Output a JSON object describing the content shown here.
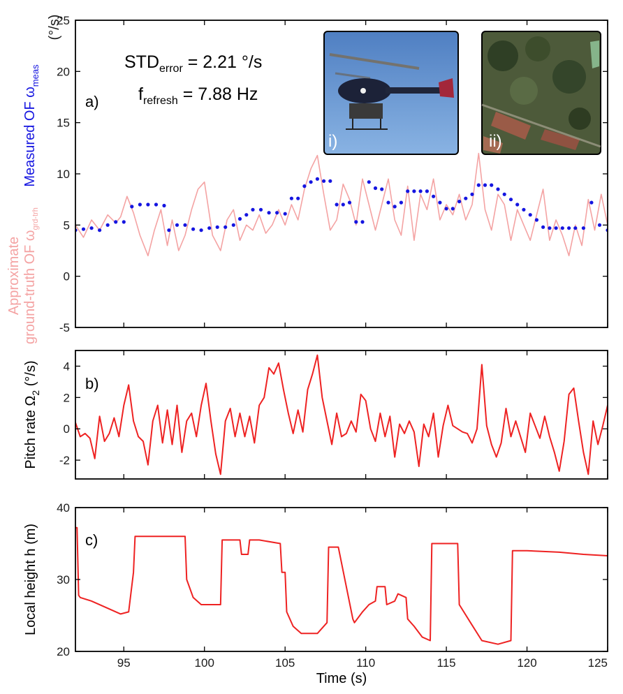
{
  "colors": {
    "ground_truth": "#f4a3a3",
    "measured": "#1515e0",
    "pitch": "#ee2222",
    "height": "#ee2222"
  },
  "xaxis": {
    "label": "Time (s)",
    "xlim": [
      92,
      125
    ],
    "ticks": [
      "95",
      "100",
      "105",
      "110",
      "115",
      "120",
      "125"
    ]
  },
  "panel_a": {
    "letter": "a)",
    "annotation_std": {
      "main": "STD",
      "sub": "error",
      "tail": " = 2.21 °/s"
    },
    "annotation_freq": {
      "main": "f",
      "sub": "refresh",
      "tail": " = 7.88 Hz"
    },
    "ylabel_measured": {
      "main": "Measured OF ω",
      "sub": "meas"
    },
    "ylabel_gt_line1": "Approximate",
    "ylabel_gt_line2": {
      "main": "ground-truth OF ω",
      "sub": "grd-trh"
    },
    "unit": "(°/s)",
    "ticks": [
      "-5",
      "0",
      "5",
      "10",
      "15",
      "20",
      "25"
    ],
    "inset_helicopter_label": "i)",
    "inset_aerial_label": "ii)"
  },
  "panel_b": {
    "letter": "b)",
    "ylabel": {
      "main": "Pitch rate Ω",
      "sub": "2",
      "tail": " (°/s)"
    },
    "ticks": [
      "-2",
      "0",
      "2",
      "4"
    ]
  },
  "panel_c": {
    "letter": "c)",
    "ylabel": "Local height h (m)",
    "ticks": [
      "20",
      "30",
      "40"
    ]
  },
  "chart_data": [
    {
      "type": "line",
      "panel": "a",
      "xlabel": "Time (s)",
      "ylabel": "Approximate ground-truth OF ω_grd-trh / Measured OF ω_meas (°/s)",
      "xlim": [
        92,
        125
      ],
      "ylim": [
        -5,
        25
      ],
      "series": [
        {
          "name": "Approximate ground-truth OF ω_grd-trh",
          "x": [
            92,
            92.5,
            93,
            93.5,
            94,
            94.5,
            94.8,
            95.2,
            95.6,
            96,
            96.5,
            96.9,
            97.3,
            97.7,
            98,
            98.4,
            98.8,
            99.2,
            99.6,
            100,
            100.5,
            101,
            101.4,
            101.8,
            102.2,
            102.6,
            103,
            103.4,
            103.8,
            104.2,
            104.6,
            105,
            105.4,
            105.8,
            106.2,
            106.6,
            107,
            107.4,
            107.8,
            108.2,
            108.6,
            109,
            109.4,
            109.8,
            110.2,
            110.6,
            111,
            111.4,
            111.8,
            112.2,
            112.6,
            113,
            113.4,
            113.8,
            114.2,
            114.6,
            115,
            115.4,
            115.8,
            116.2,
            116.6,
            117,
            117.4,
            117.8,
            118.2,
            118.6,
            119,
            119.4,
            119.8,
            120.2,
            120.6,
            121,
            121.4,
            121.8,
            122.2,
            122.6,
            123,
            123.4,
            123.8,
            124.2,
            124.6,
            125
          ],
          "y": [
            5.0,
            3.8,
            5.5,
            4.5,
            6.0,
            5.2,
            5.8,
            7.8,
            6.2,
            4.0,
            2.0,
            4.5,
            6.5,
            3.0,
            5.5,
            2.5,
            4.0,
            6.5,
            8.5,
            9.2,
            4.0,
            2.5,
            5.5,
            6.5,
            3.5,
            5.0,
            4.5,
            6.0,
            4.2,
            5.0,
            6.5,
            5.0,
            7.0,
            5.5,
            8.5,
            10.5,
            11.8,
            8.0,
            4.5,
            5.5,
            9.0,
            7.5,
            5.0,
            9.5,
            7.0,
            4.5,
            7.0,
            9.5,
            5.5,
            4.0,
            8.8,
            3.5,
            8.0,
            6.5,
            9.5,
            5.5,
            7.0,
            6.0,
            8.0,
            5.5,
            7.0,
            12.0,
            6.5,
            4.5,
            8.0,
            7.0,
            3.5,
            6.5,
            5.0,
            3.5,
            6.0,
            8.5,
            3.5,
            5.5,
            4.0,
            2.0,
            5.0,
            3.0,
            7.5,
            4.5,
            8.0,
            5.0
          ]
        },
        {
          "name": "Measured OF ω_meas",
          "x": [
            92,
            92.5,
            93,
            93.5,
            94,
            94.5,
            95,
            95.5,
            96,
            96.5,
            97,
            97.5,
            97.8,
            98.3,
            98.8,
            99.3,
            99.8,
            100.3,
            100.8,
            101.3,
            101.8,
            102.2,
            102.6,
            103,
            103.5,
            104,
            104.5,
            105,
            105.4,
            105.8,
            106.2,
            106.6,
            107,
            107.4,
            107.8,
            108.2,
            108.6,
            109,
            109.4,
            109.8,
            110.2,
            110.6,
            111,
            111.4,
            111.8,
            112.2,
            112.6,
            113,
            113.4,
            113.8,
            114.2,
            114.6,
            115,
            115.4,
            115.8,
            116.2,
            116.6,
            117,
            117.4,
            117.8,
            118.2,
            118.6,
            119,
            119.4,
            119.8,
            120.2,
            120.6,
            121,
            121.4,
            121.8,
            122.2,
            122.6,
            123,
            123.5,
            124,
            124.5,
            125
          ],
          "y": [
            4.5,
            4.6,
            4.7,
            4.5,
            5.0,
            5.3,
            5.3,
            6.8,
            7.0,
            7.0,
            7.0,
            6.9,
            4.5,
            5.0,
            5.0,
            4.6,
            4.5,
            4.7,
            4.8,
            4.8,
            5.0,
            5.6,
            6.0,
            6.5,
            6.5,
            6.2,
            6.2,
            6.1,
            7.6,
            7.6,
            8.8,
            9.2,
            9.5,
            9.3,
            9.3,
            7.0,
            7.0,
            7.2,
            5.3,
            5.3,
            9.2,
            8.6,
            8.5,
            7.2,
            6.8,
            7.2,
            8.3,
            8.3,
            8.3,
            8.3,
            7.8,
            7.2,
            6.6,
            6.6,
            7.3,
            7.6,
            8.0,
            8.9,
            8.9,
            8.9,
            8.5,
            8.0,
            7.5,
            7.0,
            6.5,
            6.0,
            5.5,
            4.8,
            4.7,
            4.7,
            4.7,
            4.7,
            4.7,
            4.7,
            7.2,
            5.0,
            4.5
          ]
        }
      ]
    },
    {
      "type": "line",
      "panel": "b",
      "xlabel": "Time (s)",
      "ylabel": "Pitch rate Ω2 (°/s)",
      "xlim": [
        92,
        125
      ],
      "ylim": [
        -3.2,
        5
      ],
      "series": [
        {
          "name": "Pitch rate Ω2",
          "x": [
            92,
            92.3,
            92.6,
            92.9,
            93.2,
            93.5,
            93.8,
            94.1,
            94.4,
            94.7,
            95,
            95.3,
            95.6,
            95.9,
            96.2,
            96.5,
            96.8,
            97.1,
            97.4,
            97.7,
            98,
            98.3,
            98.6,
            98.9,
            99.2,
            99.5,
            99.8,
            100.1,
            100.4,
            100.7,
            101,
            101.3,
            101.6,
            101.9,
            102.2,
            102.5,
            102.8,
            103.1,
            103.4,
            103.7,
            104,
            104.3,
            104.6,
            104.9,
            105.2,
            105.5,
            105.8,
            106.1,
            106.4,
            106.7,
            107,
            107.3,
            107.6,
            107.9,
            108.2,
            108.5,
            108.8,
            109.1,
            109.4,
            109.7,
            110,
            110.3,
            110.6,
            110.9,
            111.2,
            111.5,
            111.8,
            112.1,
            112.4,
            112.7,
            113,
            113.3,
            113.6,
            113.9,
            114.2,
            114.5,
            114.8,
            115.1,
            115.4,
            115.7,
            116,
            116.3,
            116.6,
            116.9,
            117.2,
            117.5,
            117.8,
            118.1,
            118.4,
            118.7,
            119,
            119.3,
            119.6,
            119.9,
            120.2,
            120.5,
            120.8,
            121.1,
            121.4,
            121.7,
            122,
            122.3,
            122.6,
            122.9,
            123.2,
            123.5,
            123.8,
            124.1,
            124.4,
            124.7,
            125
          ],
          "y": [
            0.4,
            -0.5,
            -0.3,
            -0.6,
            -1.9,
            0.8,
            -0.8,
            -0.3,
            0.7,
            -0.5,
            1.5,
            2.8,
            0.5,
            -0.5,
            -0.8,
            -2.3,
            0.5,
            1.5,
            -0.9,
            1.2,
            -1.0,
            1.5,
            -1.5,
            0.5,
            1.0,
            -0.5,
            1.5,
            2.9,
            0.5,
            -1.6,
            -2.9,
            0.5,
            1.3,
            -0.5,
            1.0,
            -0.5,
            0.8,
            -0.9,
            1.5,
            2.0,
            3.9,
            3.5,
            4.2,
            2.5,
            1.0,
            -0.3,
            1.2,
            -0.2,
            2.5,
            3.5,
            4.7,
            2.0,
            0.5,
            -1.0,
            1.0,
            -0.5,
            -0.3,
            0.5,
            -0.2,
            2.2,
            1.8,
            0.0,
            -0.8,
            1.0,
            -0.5,
            0.8,
            -1.8,
            0.3,
            -0.3,
            0.5,
            -0.2,
            -2.4,
            0.3,
            -0.5,
            1.0,
            -1.8,
            0.2,
            1.5,
            0.2,
            0.0,
            -0.2,
            -0.3,
            -0.9,
            0.0,
            4.1,
            0.2,
            -1.0,
            -1.8,
            -0.9,
            1.3,
            -0.5,
            0.5,
            -0.5,
            -1.5,
            1.0,
            0.2,
            -0.6,
            0.8,
            -0.5,
            -1.5,
            -2.7,
            -0.8,
            2.2,
            2.6,
            0.5,
            -1.5,
            -2.9,
            0.5,
            -1.0,
            0.2,
            1.5
          ]
        }
      ]
    },
    {
      "type": "line",
      "panel": "c",
      "xlabel": "Time (s)",
      "ylabel": "Local height h (m)",
      "xlim": [
        92,
        125
      ],
      "ylim": [
        20,
        40
      ],
      "series": [
        {
          "name": "Local height h",
          "x": [
            92,
            92.1,
            92.2,
            92.3,
            93,
            94,
            94.8,
            95.3,
            95.6,
            95.7,
            98.8,
            98.9,
            99.3,
            99.8,
            100.5,
            101,
            101.1,
            102.2,
            102.3,
            102.7,
            102.8,
            103.3,
            103.4,
            104.7,
            104.8,
            105.0,
            105.1,
            105.5,
            106,
            107,
            107.6,
            107.7,
            108.2,
            108.3,
            109.2,
            109.3,
            109.8,
            110.2,
            110.6,
            110.7,
            111.2,
            111.3,
            111.8,
            112,
            112.5,
            112.6,
            113.0,
            113.5,
            114,
            114.1,
            114.3,
            114.4,
            115.7,
            115.8,
            116.5,
            117.2,
            118.2,
            119,
            119.1,
            120,
            122,
            123.5,
            125
          ],
          "y": [
            37.2,
            37.2,
            27.8,
            27.5,
            27.0,
            26.0,
            25.2,
            25.5,
            31.0,
            36.0,
            36.0,
            30.0,
            27.5,
            26.5,
            26.5,
            26.5,
            35.5,
            35.5,
            33.5,
            33.5,
            35.5,
            35.5,
            35.5,
            35.0,
            31.0,
            31.0,
            25.5,
            23.5,
            22.5,
            22.5,
            24.0,
            34.5,
            34.5,
            34.5,
            24.5,
            24.0,
            25.5,
            26.5,
            27.0,
            29.0,
            29.0,
            26.5,
            27.0,
            28.0,
            27.5,
            24.5,
            23.5,
            22.0,
            21.5,
            35.0,
            35.0,
            35.0,
            35.0,
            26.5,
            24.0,
            21.5,
            21.0,
            21.5,
            34.0,
            34.0,
            33.8,
            33.5,
            33.3
          ]
        }
      ]
    }
  ]
}
